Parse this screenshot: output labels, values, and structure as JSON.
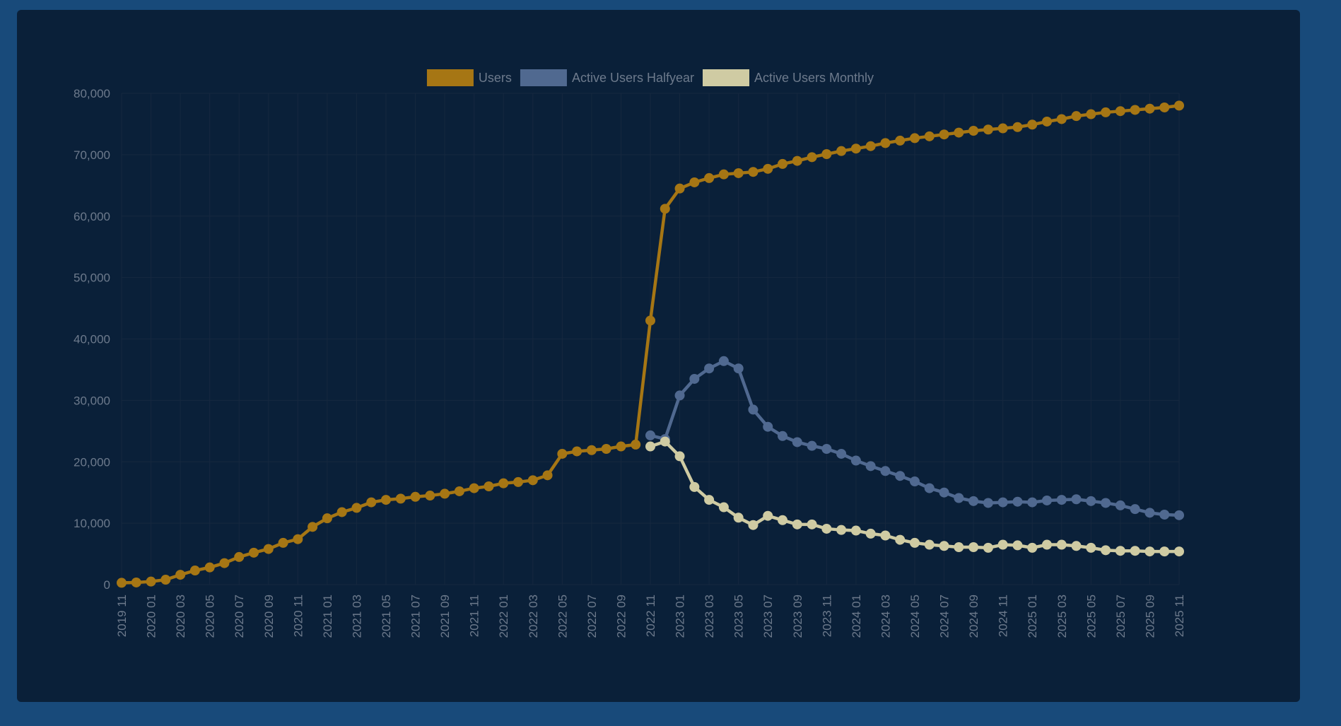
{
  "colors": {
    "page_bg": "#184a7a",
    "card_bg": "#0a2039"
  },
  "legend": [
    {
      "label": "Users",
      "color": "#a67614"
    },
    {
      "label": "Active Users Halfyear",
      "color": "#506990"
    },
    {
      "label": "Active Users Monthly",
      "color": "#cfcba3"
    }
  ],
  "chart_data": {
    "type": "line",
    "legend_position": "top-center",
    "grid": true,
    "ylim": [
      0,
      80000
    ],
    "yticks": [
      "0",
      "10,000",
      "20,000",
      "30,000",
      "40,000",
      "50,000",
      "60,000",
      "70,000",
      "80,000"
    ],
    "x": [
      "2019 11",
      "2019 12",
      "2020 01",
      "2020 02",
      "2020 03",
      "2020 04",
      "2020 05",
      "2020 06",
      "2020 07",
      "2020 08",
      "2020 09",
      "2020 10",
      "2020 11",
      "2020 12",
      "2021 01",
      "2021 02",
      "2021 03",
      "2021 04",
      "2021 05",
      "2021 06",
      "2021 07",
      "2021 08",
      "2021 09",
      "2021 10",
      "2021 11",
      "2021 12",
      "2022 01",
      "2022 02",
      "2022 03",
      "2022 04",
      "2022 05",
      "2022 06",
      "2022 07",
      "2022 08",
      "2022 09",
      "2022 10",
      "2022 11",
      "2022 12",
      "2023 01",
      "2023 02",
      "2023 03",
      "2023 04",
      "2023 05",
      "2023 06",
      "2023 07",
      "2023 08",
      "2023 09",
      "2023 10",
      "2023 11",
      "2023 12",
      "2024 01",
      "2024 02",
      "2024 03",
      "2024 04",
      "2024 05",
      "2024 06",
      "2024 07",
      "2024 08",
      "2024 09",
      "2024 10",
      "2024 11",
      "2024 12",
      "2025 01",
      "2025 02",
      "2025 03",
      "2025 04",
      "2025 05",
      "2025 06",
      "2025 07",
      "2025 08",
      "2025 09",
      "2025 10",
      "2025 11"
    ],
    "xticks": [
      "2019 11",
      "2020 01",
      "2020 03",
      "2020 05",
      "2020 07",
      "2020 09",
      "2020 11",
      "2021 01",
      "2021 03",
      "2021 05",
      "2021 07",
      "2021 09",
      "2021 11",
      "2022 01",
      "2022 03",
      "2022 05",
      "2022 07",
      "2022 09",
      "2022 11",
      "2023 01",
      "2023 03",
      "2023 05",
      "2023 07",
      "2023 09",
      "2023 11",
      "2024 01",
      "2024 03",
      "2024 05",
      "2024 07",
      "2024 09",
      "2024 11",
      "2025 01",
      "2025 03",
      "2025 05",
      "2025 07",
      "2025 09",
      "2025 11"
    ],
    "series": [
      {
        "name": "Users",
        "color": "#a67614",
        "values": [
          300,
          350,
          500,
          800,
          1600,
          2300,
          2800,
          3500,
          4500,
          5200,
          5800,
          6800,
          7400,
          9400,
          10800,
          11800,
          12500,
          13400,
          13800,
          14000,
          14300,
          14500,
          14800,
          15200,
          15700,
          16000,
          16500,
          16700,
          17000,
          17800,
          21300,
          21700,
          21900,
          22100,
          22500,
          22800,
          43000,
          61200,
          64500,
          65500,
          66200,
          66800,
          67000,
          67200,
          67700,
          68500,
          69000,
          69600,
          70100,
          70600,
          71000,
          71400,
          71900,
          72300,
          72700,
          73000,
          73300,
          73600,
          73900,
          74100,
          74300,
          74500,
          74900,
          75400,
          75800,
          76300,
          76600,
          76900,
          77100,
          77300,
          77500,
          77700,
          78000
        ]
      },
      {
        "name": "Active Users Halfyear",
        "color": "#506990",
        "values": [
          null,
          null,
          null,
          null,
          null,
          null,
          null,
          null,
          null,
          null,
          null,
          null,
          null,
          null,
          null,
          null,
          null,
          null,
          null,
          null,
          null,
          null,
          null,
          null,
          null,
          null,
          null,
          null,
          null,
          null,
          null,
          null,
          null,
          null,
          null,
          null,
          24300,
          23700,
          30800,
          33500,
          35200,
          36400,
          35200,
          28500,
          25700,
          24200,
          23200,
          22600,
          22100,
          21300,
          20200,
          19300,
          18500,
          17700,
          16800,
          15700,
          15000,
          14100,
          13600,
          13300,
          13400,
          13500,
          13400,
          13700,
          13800,
          13900,
          13600,
          13300,
          12900,
          12300,
          11700,
          11400,
          11300
        ]
      },
      {
        "name": "Active Users Monthly",
        "color": "#cfcba3",
        "values": [
          null,
          null,
          null,
          null,
          null,
          null,
          null,
          null,
          null,
          null,
          null,
          null,
          null,
          null,
          null,
          null,
          null,
          null,
          null,
          null,
          null,
          null,
          null,
          null,
          null,
          null,
          null,
          null,
          null,
          null,
          null,
          null,
          null,
          null,
          null,
          null,
          22500,
          23300,
          20900,
          15900,
          13800,
          12600,
          10900,
          9700,
          11200,
          10500,
          9800,
          9800,
          9100,
          8900,
          8800,
          8300,
          8000,
          7300,
          6800,
          6500,
          6300,
          6100,
          6100,
          6000,
          6500,
          6400,
          6000,
          6500,
          6500,
          6300,
          6000,
          5600,
          5500,
          5500,
          5400,
          5400,
          5400
        ]
      }
    ]
  }
}
